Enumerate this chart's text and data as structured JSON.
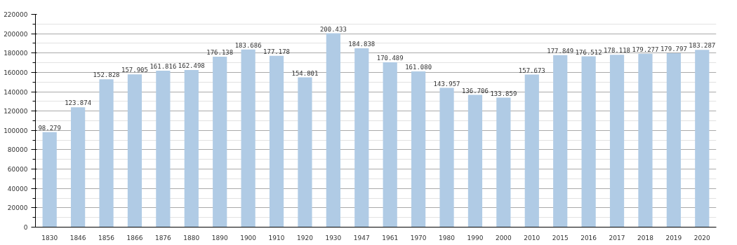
{
  "chart_data": {
    "type": "bar",
    "categories": [
      "1830",
      "1846",
      "1856",
      "1866",
      "1876",
      "1880",
      "1890",
      "1900",
      "1910",
      "1920",
      "1930",
      "1947",
      "1961",
      "1970",
      "1980",
      "1990",
      "2000",
      "2010",
      "2015",
      "2016",
      "2017",
      "2018",
      "2019",
      "2020"
    ],
    "values": [
      98279,
      123874,
      152828,
      157905,
      161816,
      162498,
      176138,
      183686,
      177178,
      154801,
      200433,
      184838,
      170489,
      161080,
      143957,
      136706,
      133859,
      157673,
      177849,
      176512,
      178118,
      179277,
      179797,
      183287
    ],
    "value_labels": [
      "98.279",
      "123.874",
      "152.828",
      "157.905",
      "161.816",
      "162.498",
      "176.138",
      "183.686",
      "177.178",
      "154.801",
      "200.433",
      "184.838",
      "170.489",
      "161.080",
      "143.957",
      "136.706",
      "133.859",
      "157.673",
      "177.849",
      "176.512",
      "178.118",
      "179.277",
      "179.797",
      "183.287"
    ],
    "color": "#b0cbe5",
    "ylim": [
      0,
      220000
    ],
    "yticks": [
      0,
      {
        "value": 10000,
        "label": null
      },
      20000,
      {
        "value": 30000,
        "label": null
      },
      40000,
      {
        "value": 50000,
        "label": null
      },
      60000,
      {
        "value": 70000,
        "label": null
      },
      80000,
      {
        "value": 90000,
        "label": null
      },
      100000,
      {
        "value": 110000,
        "label": null
      },
      120000,
      {
        "value": 130000,
        "label": null
      },
      140000,
      {
        "value": 150000,
        "label": null
      },
      160000,
      {
        "value": 170000,
        "label": null
      },
      180000,
      {
        "value": 190000,
        "label": null
      },
      200000,
      {
        "value": 210000,
        "label": null
      },
      220000
    ],
    "grid": "y"
  }
}
